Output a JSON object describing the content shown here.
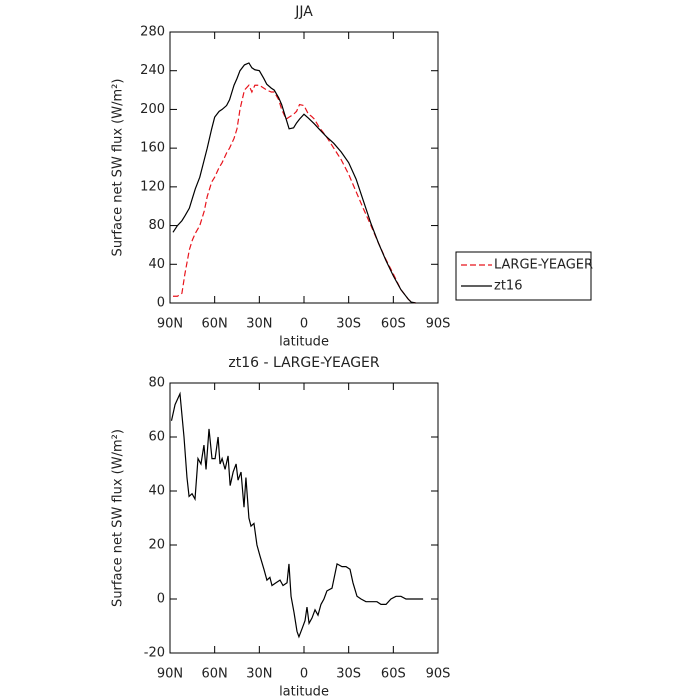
{
  "chart_data": [
    {
      "type": "line",
      "title": "JJA",
      "x_label": "latitude",
      "y_label": "Surface net SW flux (W/m²)",
      "x": [
        88,
        85,
        82,
        80,
        77,
        75,
        73,
        70,
        67,
        65,
        62,
        60,
        57,
        55,
        52,
        50,
        47,
        45,
        43,
        40,
        37,
        35,
        33,
        30,
        27,
        25,
        22,
        20,
        17,
        15,
        12,
        10,
        7,
        5,
        3,
        0,
        -3,
        -5,
        -7,
        -10,
        -15,
        -20,
        -25,
        -30,
        -35,
        -40,
        -45,
        -50,
        -55,
        -60,
        -65,
        -70,
        -72,
        -75
      ],
      "series": [
        {
          "name": "LARGE-YEAGER",
          "color": "#e8141c",
          "dash": true,
          "values": [
            7,
            7,
            10,
            30,
            55,
            65,
            72,
            80,
            95,
            110,
            125,
            130,
            140,
            145,
            155,
            160,
            170,
            180,
            200,
            220,
            225,
            218,
            225,
            225,
            222,
            220,
            218,
            218,
            210,
            200,
            190,
            192,
            195,
            198,
            205,
            204,
            195,
            193,
            190,
            182,
            172,
            160,
            148,
            133,
            115,
            97,
            80,
            62,
            45,
            30,
            14,
            4,
            1,
            0
          ]
        },
        {
          "name": "zt16",
          "color": "#000000",
          "dash": false,
          "values": [
            73,
            80,
            85,
            90,
            98,
            108,
            118,
            130,
            148,
            160,
            180,
            192,
            198,
            200,
            204,
            210,
            225,
            232,
            240,
            246,
            248,
            243,
            241,
            240,
            232,
            226,
            222,
            220,
            212,
            205,
            190,
            180,
            181,
            186,
            190,
            195,
            191,
            188,
            185,
            180,
            172,
            165,
            156,
            145,
            128,
            105,
            82,
            62,
            44,
            28,
            14,
            4,
            1,
            0
          ]
        }
      ],
      "xlim": [
        90,
        -90
      ],
      "xticks": [
        {
          "value": 90,
          "label": "90N"
        },
        {
          "value": 60,
          "label": "60N"
        },
        {
          "value": 30,
          "label": "30N"
        },
        0,
        {
          "value": -30,
          "label": "30S"
        },
        {
          "value": -60,
          "label": "60S"
        },
        {
          "value": -90,
          "label": "90S"
        }
      ],
      "ylim": [
        0,
        280
      ],
      "yticks": [
        0,
        40,
        80,
        120,
        160,
        200,
        240,
        280
      ],
      "legend": "right"
    },
    {
      "type": "line",
      "title": "zt16 - LARGE-YEAGER",
      "x_label": "latitude",
      "y_label": "Surface net SW flux (W/m²)",
      "x": [
        89,
        86.6,
        83.3,
        80.6,
        78.6,
        77.2,
        75.2,
        73.2,
        71.2,
        69.2,
        67.2,
        65.8,
        63.8,
        61.8,
        59.7,
        57.7,
        56.4,
        55.0,
        53.0,
        51.0,
        49.6,
        47.6,
        45.6,
        44.3,
        42.3,
        40.3,
        39.0,
        37.0,
        35.6,
        33.6,
        31.6,
        29.6,
        26.9,
        24.9,
        22.9,
        21.5,
        18.8,
        16.1,
        14.1,
        11.4,
        10.1,
        8.7,
        6.7,
        4.7,
        3.4,
        1.3,
        -0.7,
        -2.0,
        -3.4,
        -5.4,
        -7.4,
        -9.4,
        -11.4,
        -13.4,
        -15.4,
        -18.8,
        -22.2,
        -25.5,
        -28.2,
        -30.9,
        -32.9,
        -35.6,
        -38.3,
        -41.6,
        -45.0,
        -49.0,
        -51.7,
        -55.1,
        -58.4,
        -61.8,
        -65.1,
        -68.5,
        -72.5,
        -76.6,
        -80.0
      ],
      "values": [
        66,
        72,
        76,
        60,
        45,
        38,
        39,
        37,
        52,
        50,
        57,
        48,
        63,
        52,
        52,
        60,
        50,
        52,
        48,
        53,
        42,
        47,
        50,
        44,
        47,
        34,
        45,
        30,
        27,
        28,
        20,
        16,
        11,
        7,
        8,
        5,
        6,
        7,
        5,
        6,
        13,
        1,
        -5,
        -12,
        -14,
        -11,
        -8,
        -3,
        -9,
        -7,
        -4,
        -6,
        -2,
        0,
        3,
        4,
        13,
        12,
        12,
        11,
        6,
        1,
        0,
        -1,
        -1,
        -1,
        -2,
        -2,
        0,
        1,
        1,
        0,
        0,
        0,
        0
      ],
      "color": "#000000",
      "xlim": [
        90,
        -90
      ],
      "xticks": [
        {
          "value": 90,
          "label": "90N"
        },
        {
          "value": 60,
          "label": "60N"
        },
        {
          "value": 30,
          "label": "30N"
        },
        0,
        {
          "value": -30,
          "label": "30S"
        },
        {
          "value": -60,
          "label": "60S"
        },
        {
          "value": -90,
          "label": "90S"
        }
      ],
      "ylim": [
        -20,
        80
      ],
      "yticks": [
        -20,
        0,
        20,
        40,
        60,
        80
      ]
    }
  ]
}
